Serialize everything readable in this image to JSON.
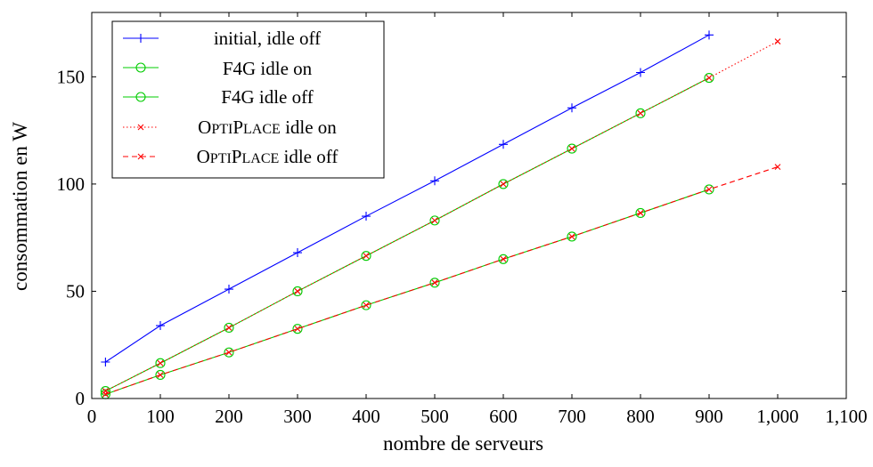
{
  "chart_data": {
    "type": "line",
    "title": "",
    "xlabel": "nombre de serveurs",
    "ylabel": "consommation en W",
    "xlim": [
      0,
      1100
    ],
    "ylim": [
      0,
      180
    ],
    "xticks": [
      0,
      100,
      200,
      300,
      400,
      500,
      600,
      700,
      800,
      900,
      1000,
      1100
    ],
    "xtick_labels": [
      "0",
      "100",
      "200",
      "300",
      "400",
      "500",
      "600",
      "700",
      "800",
      "900",
      "1,000",
      "1,100"
    ],
    "yticks": [
      0,
      50,
      100,
      150
    ],
    "ytick_labels": [
      "0",
      "50",
      "100",
      "150"
    ],
    "grid": false,
    "legend_position": "top-left",
    "series": [
      {
        "name": "initial, idle off",
        "color": "#0000ff",
        "line_style": "solid",
        "marker": "plus",
        "x": [
          20,
          100,
          200,
          300,
          400,
          500,
          600,
          700,
          800,
          900
        ],
        "y": [
          17,
          34,
          51,
          68,
          85,
          101.5,
          118.5,
          135.5,
          152,
          169.5
        ]
      },
      {
        "name": "F4G idle on",
        "color": "#00cc00",
        "line_style": "solid",
        "marker": "circle",
        "x": [
          20,
          100,
          200,
          300,
          400,
          500,
          600,
          700,
          800,
          900
        ],
        "y": [
          3.5,
          16.5,
          33,
          50,
          66.5,
          83,
          100,
          116.5,
          133,
          149.5
        ]
      },
      {
        "name": "F4G idle off",
        "color": "#00cc00",
        "line_style": "solid",
        "marker": "circle",
        "x": [
          20,
          100,
          200,
          300,
          400,
          500,
          600,
          700,
          800,
          900
        ],
        "y": [
          2,
          11,
          21.5,
          32.5,
          43.5,
          54,
          65,
          75.5,
          86.5,
          97.5
        ]
      },
      {
        "name_prefix": "O",
        "name_smallcaps": "PTI",
        "name_mid": "P",
        "name_smallcaps2": "LACE",
        "name_suffix": " idle on",
        "name": "OPTIPLACE idle on",
        "color": "#ff0000",
        "line_style": "dotted",
        "marker": "x",
        "x": [
          20,
          100,
          200,
          300,
          400,
          500,
          600,
          700,
          800,
          900,
          1000
        ],
        "y": [
          3.5,
          16.5,
          33,
          50,
          66.5,
          83,
          100,
          116.5,
          133,
          149.5,
          166.5
        ]
      },
      {
        "name": "OPTIPLACE idle off",
        "color": "#ff0000",
        "line_style": "dashed",
        "marker": "x",
        "x": [
          20,
          100,
          200,
          300,
          400,
          500,
          600,
          700,
          800,
          900,
          1000
        ],
        "y": [
          2,
          11,
          21.5,
          32.5,
          43.5,
          54,
          65,
          75.5,
          86.5,
          97.5,
          108
        ]
      }
    ]
  },
  "legend": {
    "items": [
      {
        "label": "initial, idle off"
      },
      {
        "label": "F4G idle on"
      },
      {
        "label": "F4G idle off"
      },
      {
        "label_big1": "O",
        "label_small1": "PTI",
        "label_big2": "P",
        "label_small2": "LACE",
        "label_rest": " idle on"
      },
      {
        "label_big1": "O",
        "label_small1": "PTI",
        "label_big2": "P",
        "label_small2": "LACE",
        "label_rest": " idle off"
      }
    ]
  }
}
